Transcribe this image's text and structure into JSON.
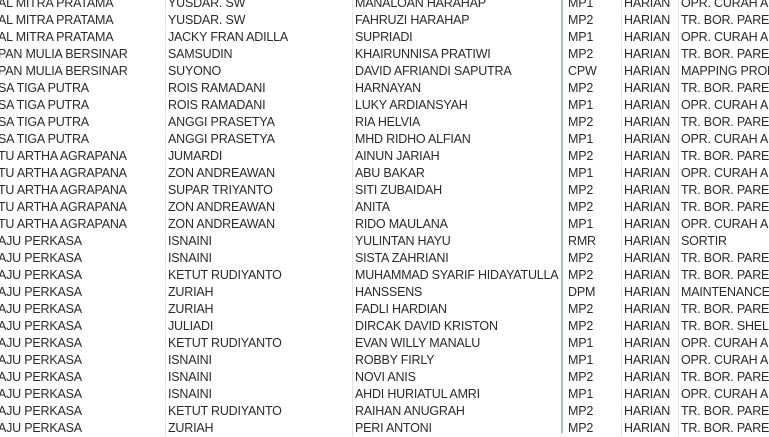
{
  "rows": [
    [
      "AL MITRA PRATAMA",
      "YUSDAR. SW",
      "MANALOAN HARAHAP",
      "MP1",
      "HARIAN",
      "OPR. CURAH AI"
    ],
    [
      "AL MITRA PRATAMA",
      "YUSDAR. SW",
      "FAHRUZI HARAHAP",
      "MP2",
      "HARIAN",
      "TR. BOR. PAREF"
    ],
    [
      "AL MITRA PRATAMA",
      "JACKY FRAN ADILLA",
      "SUPRIADI",
      "MP1",
      "HARIAN",
      "OPR. CURAH AI"
    ],
    [
      "PAN MULIA BERSINAR",
      "SAMSUDIN",
      "KHAIRUNNISA PRATIWI",
      "MP2",
      "HARIAN",
      "TR. BOR. PAREF"
    ],
    [
      "PAN MULIA BERSINAR",
      "SUYONO",
      "DAVID AFRIANDI SAPUTRA",
      "CPW",
      "HARIAN",
      "MAPPING PROD"
    ],
    [
      "SA TIGA PUTRA",
      "ROIS RAMADANI",
      "HARNAYAN",
      "MP2",
      "HARIAN",
      "TR. BOR. PAREF"
    ],
    [
      "SA TIGA PUTRA",
      "ROIS RAMADANI",
      "LUKY ARDIANSYAH",
      "MP1",
      "HARIAN",
      "OPR. CURAH AI"
    ],
    [
      "SA TIGA PUTRA",
      "ANGGI PRASETYA",
      "RIA HELVIA",
      "MP2",
      "HARIAN",
      "TR. BOR. PAREF"
    ],
    [
      "SA TIGA PUTRA",
      "ANGGI PRASETYA",
      "MHD RIDHO ALFIAN",
      "MP1",
      "HARIAN",
      "OPR. CURAH AI"
    ],
    [
      "TU ARTHA AGRAPANA",
      "JUMARDI",
      "AINUN JARIAH",
      "MP2",
      "HARIAN",
      "TR. BOR. PAREF"
    ],
    [
      "TU ARTHA AGRAPANA",
      "ZON ANDREAWAN",
      "ABU BAKAR",
      "MP1",
      "HARIAN",
      "OPR. CURAH AI"
    ],
    [
      "TU ARTHA AGRAPANA",
      "SUPAR TRIYANTO",
      "SITI ZUBAIDAH",
      "MP2",
      "HARIAN",
      "TR. BOR. PAREF"
    ],
    [
      "TU ARTHA AGRAPANA",
      "ZON ANDREAWAN",
      "ANITA",
      "MP2",
      "HARIAN",
      "TR. BOR. PAREF"
    ],
    [
      "TU ARTHA AGRAPANA",
      "ZON ANDREAWAN",
      "RIDO MAULANA",
      "MP1",
      "HARIAN",
      "OPR. CURAH AI"
    ],
    [
      "AJU PERKASA",
      "ISNAINI",
      "YULINTAN HAYU",
      "RMR",
      "HARIAN",
      "SORTIR"
    ],
    [
      "AJU PERKASA",
      "ISNAINI",
      "SISTA ZAHRIANI",
      "MP2",
      "HARIAN",
      "TR. BOR. PAREF"
    ],
    [
      "AJU PERKASA",
      "KETUT RUDIYANTO",
      "MUHAMMAD SYARIF HIDAYATULLA",
      "MP2",
      "HARIAN",
      "TR. BOR. PAREF"
    ],
    [
      "AJU PERKASA",
      "ZURIAH",
      "HANSSENS",
      "DPM",
      "HARIAN",
      "MAINTENANCE"
    ],
    [
      "AJU PERKASA",
      "ZURIAH",
      "FADLI HARDIAN",
      "MP2",
      "HARIAN",
      "TR. BOR. PAREF"
    ],
    [
      "AJU PERKASA",
      "JULIADI",
      "DIRCAK DAVID KRISTON",
      "MP2",
      "HARIAN",
      "TR. BOR. SHELL"
    ],
    [
      "AJU PERKASA",
      "KETUT RUDIYANTO",
      "EVAN WILLY MANALU",
      "MP1",
      "HARIAN",
      "OPR. CURAH AI"
    ],
    [
      "AJU PERKASA",
      "ISNAINI",
      "ROBBY FIRLY",
      "MP1",
      "HARIAN",
      "OPR. CURAH AI"
    ],
    [
      "AJU PERKASA",
      "ISNAINI",
      "NOVI ANIS",
      "MP2",
      "HARIAN",
      "TR. BOR. PAREF"
    ],
    [
      "AJU PERKASA",
      "ISNAINI",
      "AHDI HURIATUL AMRI",
      "MP1",
      "HARIAN",
      "OPR. CURAH AI"
    ],
    [
      "AJU PERKASA",
      "KETUT RUDIYANTO",
      "RAIHAN ANUGRAH",
      "MP2",
      "HARIAN",
      "TR. BOR. PAREF"
    ],
    [
      "AJU PERKASA",
      "ZURIAH",
      "PERI ANTONI",
      "MP2",
      "HARIAN",
      "TR. BOR. PAREF"
    ]
  ],
  "colors": {
    "freeze_line": "#a8c3bf",
    "gridline": "#e3e3e3"
  }
}
